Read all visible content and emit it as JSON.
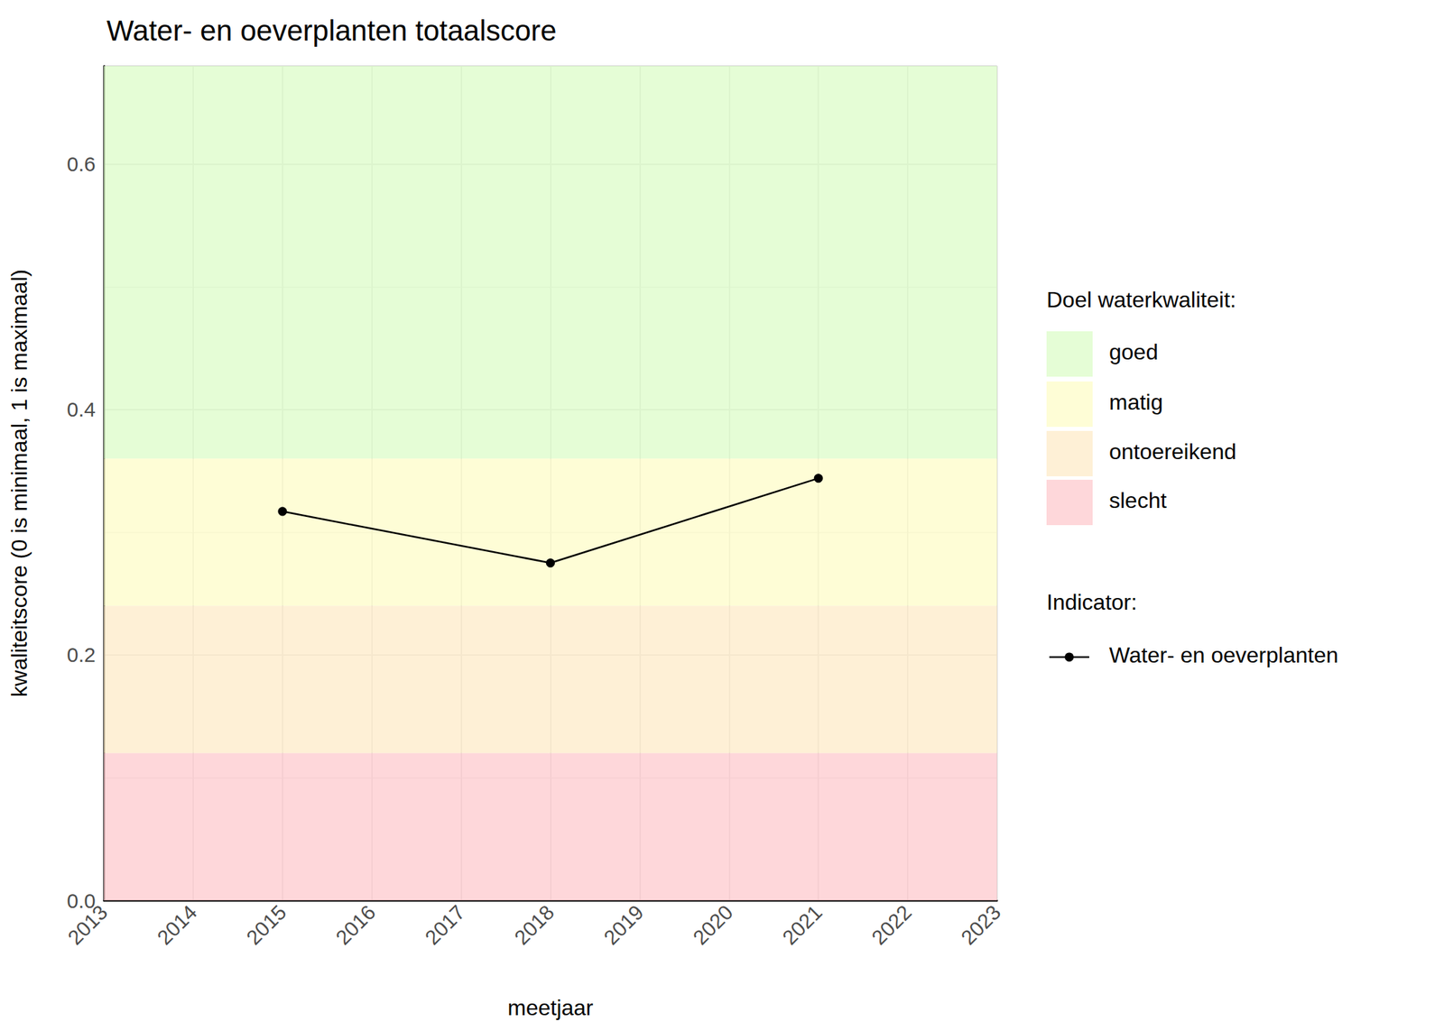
{
  "chart_data": {
    "type": "line",
    "title": "Water- en oeverplanten totaalscore",
    "x_label": "meetjaar",
    "y_label": "kwaliteitscore (0 is minimaal, 1 is maximaal)",
    "x": [
      2015,
      2018,
      2021
    ],
    "series": [
      {
        "name": "Water- en oeverplanten",
        "color": "#000000",
        "values": [
          0.317,
          0.275,
          0.344
        ],
        "marker": "circle",
        "line_style": "solid"
      }
    ],
    "xlim": [
      2013,
      2023
    ],
    "xticks": [
      2013,
      2014,
      2015,
      2016,
      2017,
      2018,
      2019,
      2020,
      2021,
      2022,
      2023
    ],
    "ylim": [
      0,
      0.68
    ],
    "yticks": [
      {
        "value": 0,
        "label": "0.0"
      },
      0.2,
      0.4,
      0.6
    ],
    "grid": true,
    "legend_title": "Indicator:",
    "band_legend_title": "Doel waterkwaliteit:",
    "bands": [
      {
        "name": "goed",
        "color": "#dcfcc8",
        "min": 0.36,
        "max": 0.68
      },
      {
        "name": "matig",
        "color": "#fefcc8",
        "min": 0.24,
        "max": 0.36
      },
      {
        "name": "ontoereikend",
        "color": "#feebc8",
        "min": 0.12,
        "max": 0.24
      },
      {
        "name": "slecht",
        "color": "#fecacd",
        "min": 0,
        "max": 0.12
      }
    ]
  }
}
